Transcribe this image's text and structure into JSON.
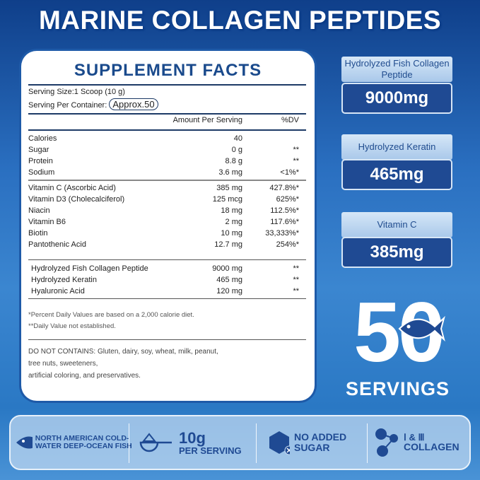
{
  "title": "MARINE COLLAGEN PEPTIDES",
  "facts": {
    "heading": "SUPPLEMENT FACTS",
    "serving_size": "Serving Size:1 Scoop (10 g)",
    "serving_per_container_label": "Serving Per Container:",
    "serving_per_container_value": "Approx.50",
    "col_amount": "Amount Per Serving",
    "col_dv": "%DV",
    "group1": [
      {
        "name": "Calories",
        "amount": "40",
        "dv": ""
      },
      {
        "name": "Sugar",
        "amount": "0 g",
        "dv": "**"
      },
      {
        "name": "Protein",
        "amount": "8.8 g",
        "dv": "**"
      },
      {
        "name": "Sodium",
        "amount": "3.6 mg",
        "dv": "<1%*"
      }
    ],
    "group2": [
      {
        "name": "Vitamin C (Ascorbic Acid)",
        "amount": "385 mg",
        "dv": "427.8%*"
      },
      {
        "name": "Vitamin D3 (Cholecalciferol)",
        "amount": "125 mcg",
        "dv": "625%*"
      },
      {
        "name": "Niacin",
        "amount": "18 mg",
        "dv": "112.5%*"
      },
      {
        "name": "Vitamin B6",
        "amount": "2 mg",
        "dv": "117.6%*"
      },
      {
        "name": "Biotin",
        "amount": "10 mg",
        "dv": "33,333%*"
      },
      {
        "name": "Pantothenic Acid",
        "amount": "12.7 mg",
        "dv": "254%*"
      }
    ],
    "group3": [
      {
        "name": "Hydrolyzed Fish Collagen Peptide",
        "amount": "9000 mg",
        "dv": "**"
      },
      {
        "name": "Hydrolyzed Keratin",
        "amount": "465 mg",
        "dv": "**"
      },
      {
        "name": "Hyaluronic Acid",
        "amount": "120 mg",
        "dv": "**"
      }
    ],
    "footnote1": "*Percent Daily Values are based on a 2,000 calorie diet.",
    "footnote2": "**Daily Value not established.",
    "contains1": "DO NOT CONTAINS: Gluten, dairy, soy, wheat, milk, peanut,",
    "contains2": "tree nuts, sweeteners,",
    "contains3": "artificial coloring, and preservatives."
  },
  "highlights": [
    {
      "label": "Hydrolyzed Fish Collagen Peptide",
      "value": "9000mg"
    },
    {
      "label": "Hydrolyzed Keratin",
      "value": "465mg"
    },
    {
      "label": "Vitamin C",
      "value": "385mg"
    }
  ],
  "servings": {
    "number": "50",
    "label": "SERVINGS"
  },
  "features": {
    "fish": "NORTH AMERICAN COLD-WATER DEEP-OCEAN FISH",
    "dose_value": "10g",
    "dose_label": "PER SERVING",
    "sugar": "NO ADDED SUGAR",
    "collagen_types": "Ⅰ & Ⅲ",
    "collagen": "COLLAGEN"
  },
  "colors": {
    "brand_blue": "#1f4a93",
    "heading_blue": "#1a4a8c"
  }
}
